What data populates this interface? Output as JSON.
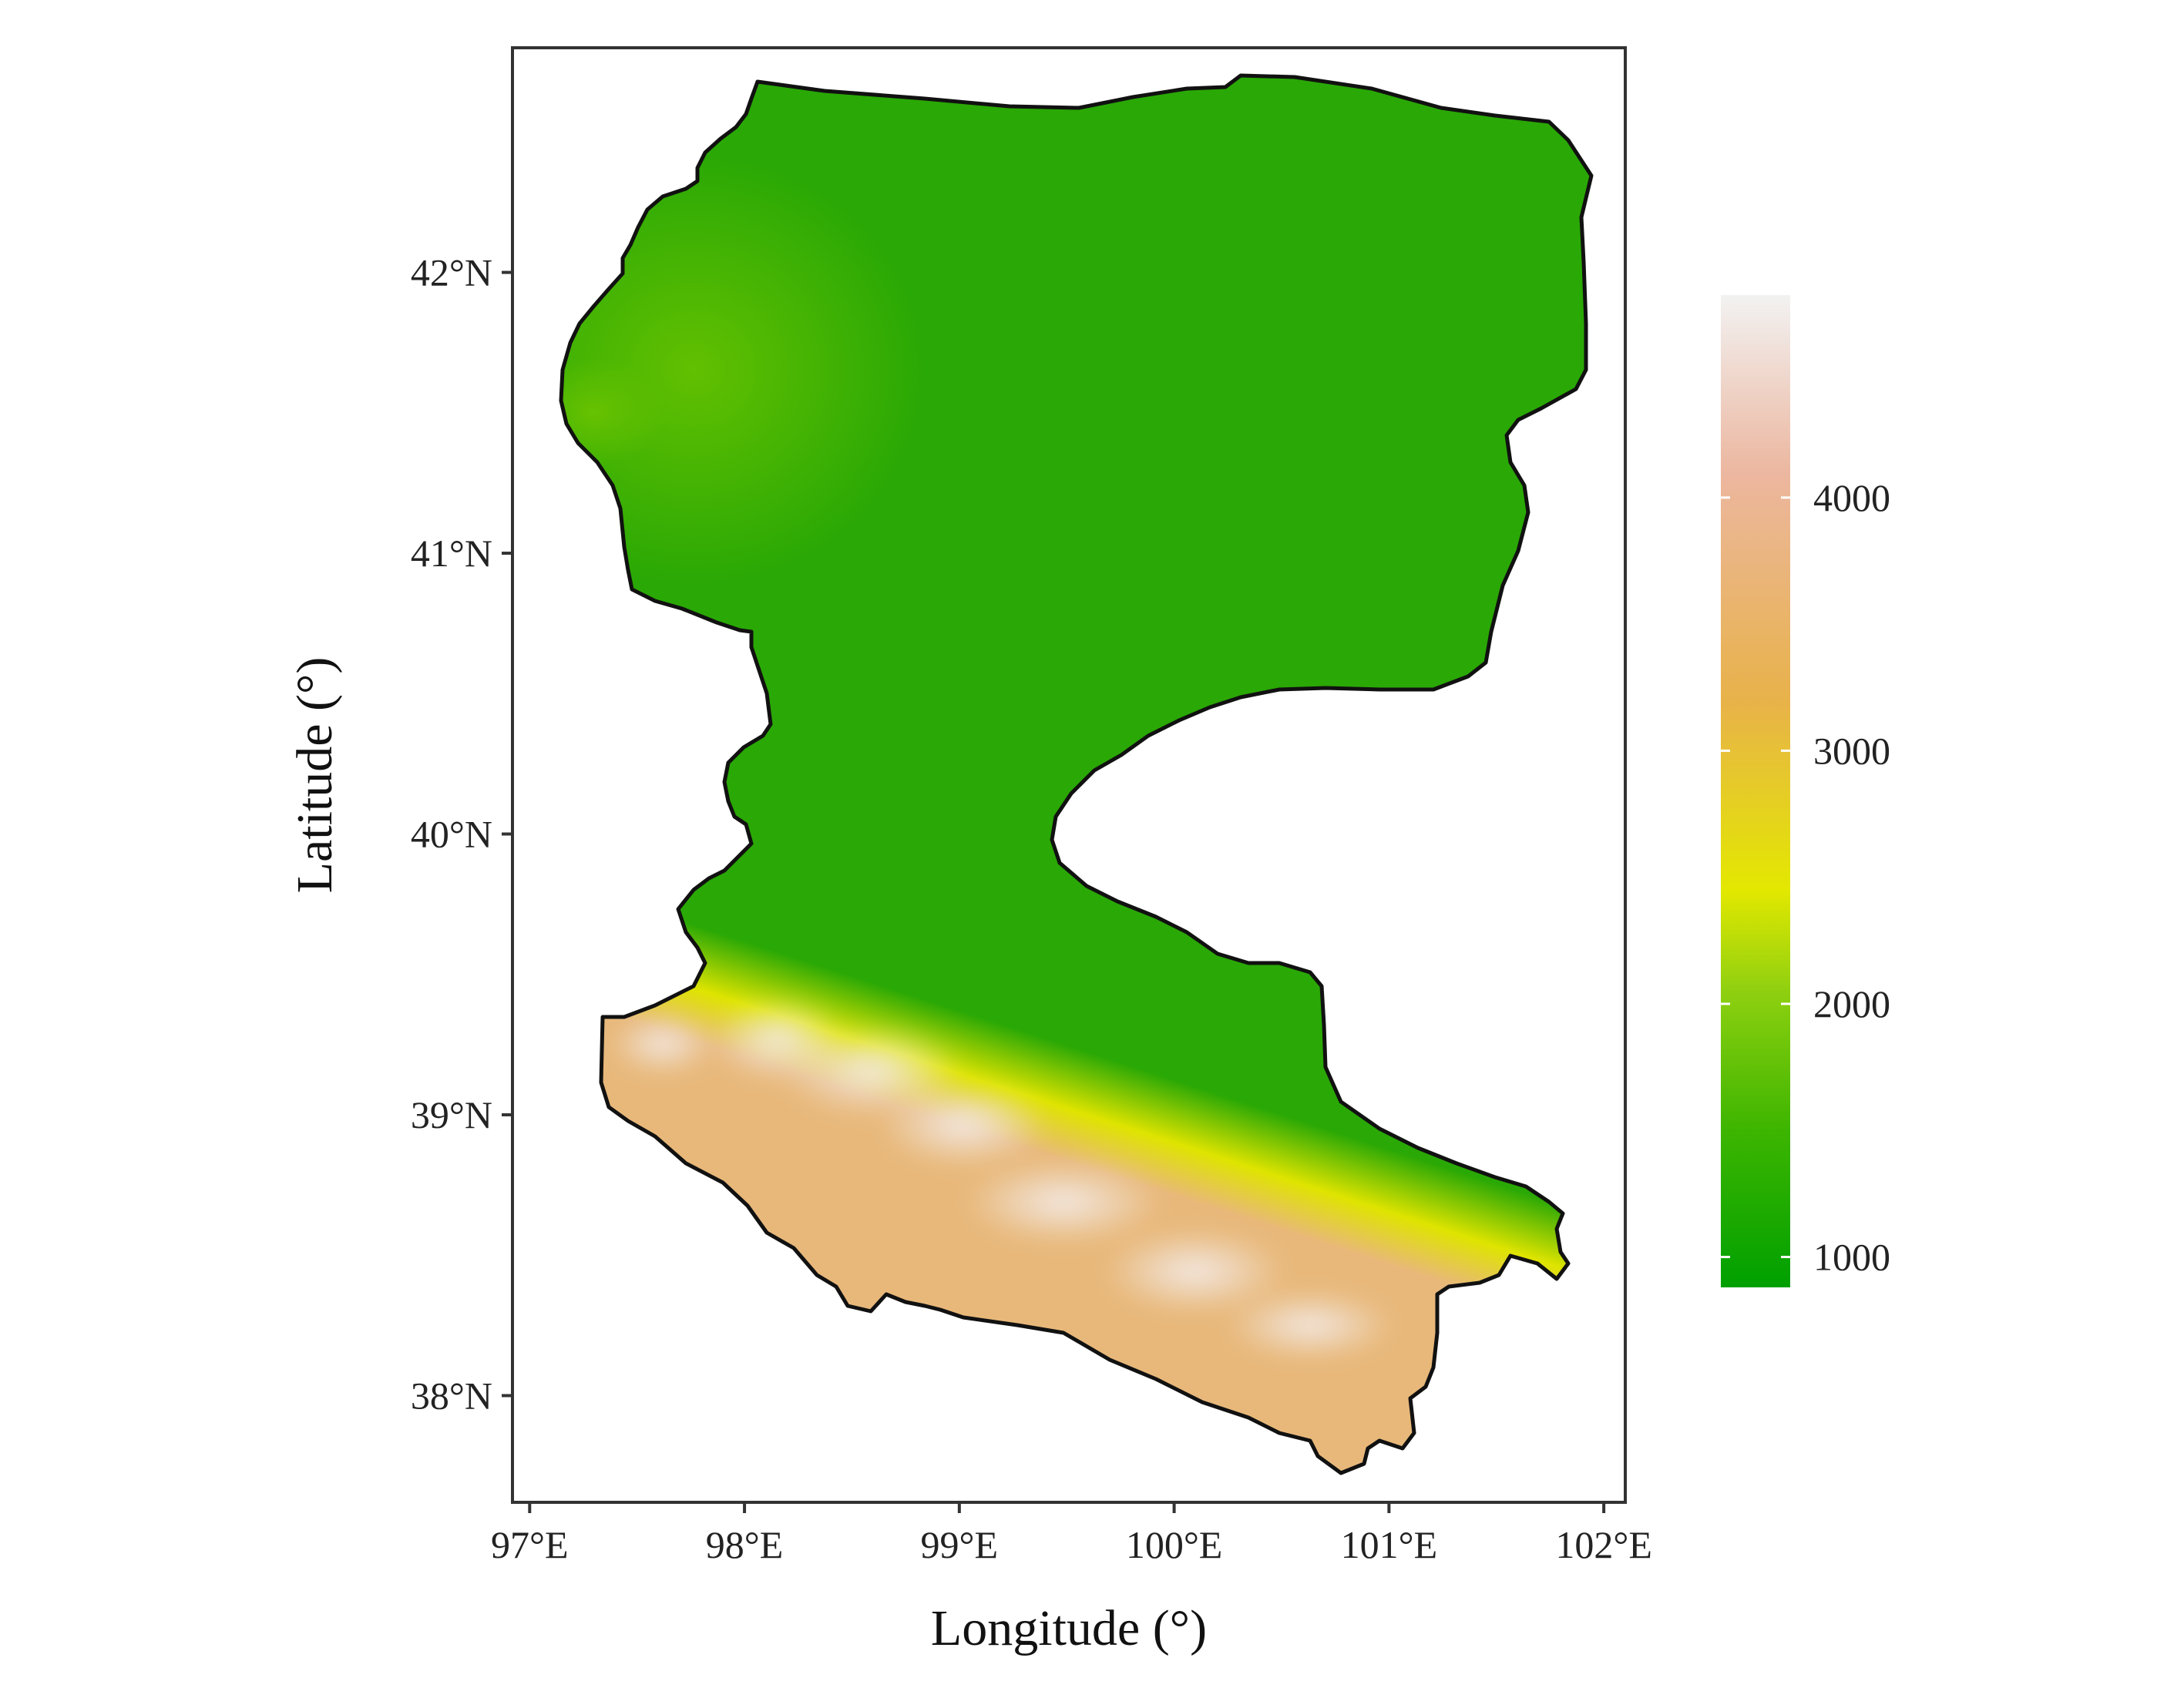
{
  "map": {
    "x_axis": {
      "title": "Longitude (°)",
      "ticks": [
        {
          "lon": 97,
          "label": "97°E"
        },
        {
          "lon": 98,
          "label": "98°E"
        },
        {
          "lon": 99,
          "label": "99°E"
        },
        {
          "lon": 100,
          "label": "100°E"
        },
        {
          "lon": 101,
          "label": "101°E"
        },
        {
          "lon": 102,
          "label": "102°E"
        }
      ]
    },
    "y_axis": {
      "title": "Latitude (°)",
      "ticks": [
        {
          "lat": 42,
          "label": "42°N"
        },
        {
          "lat": 41,
          "label": "41°N"
        },
        {
          "lat": 40,
          "label": "40°N"
        },
        {
          "lat": 39,
          "label": "39°N"
        },
        {
          "lat": 38,
          "label": "38°N"
        }
      ]
    },
    "lon_range": [
      96.92,
      102.1
    ],
    "lat_range": [
      37.62,
      42.8
    ],
    "colorbar": {
      "min": 880,
      "max": 4800,
      "ticks": [
        {
          "value": 1000,
          "label": "1000"
        },
        {
          "value": 2000,
          "label": "2000"
        },
        {
          "value": 3000,
          "label": "3000"
        },
        {
          "value": 4000,
          "label": "4000"
        }
      ],
      "stops": [
        {
          "value": 880,
          "color": "#00a000"
        },
        {
          "value": 1500,
          "color": "#3db500"
        },
        {
          "value": 2050,
          "color": "#8fd010"
        },
        {
          "value": 2450,
          "color": "#e3e800"
        },
        {
          "value": 3200,
          "color": "#e8b24a"
        },
        {
          "value": 4100,
          "color": "#ecb7a0"
        },
        {
          "value": 4800,
          "color": "#f2f2f2"
        }
      ]
    },
    "colors": {
      "boundary": "#111111",
      "frame": "#333333",
      "lowland_green": "#2aa805",
      "northwest_green": "#6cc400",
      "foothill_yellow": "#dfe400",
      "mountain_orange": "#e8b87a",
      "peak_white": "#f3ecea"
    }
  }
}
